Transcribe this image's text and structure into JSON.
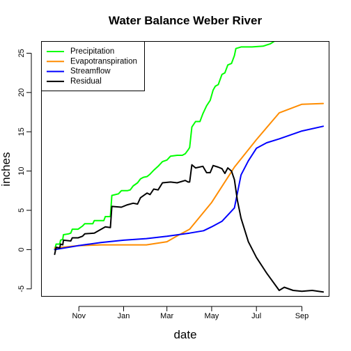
{
  "chart_data": {
    "type": "line",
    "title": "Water Balance Weber River",
    "xlabel": "date",
    "ylabel": "inches",
    "x_ticks": [
      "Nov",
      "Jan",
      "Mar",
      "May",
      "Jul",
      "Sep"
    ],
    "x_tick_dates": [
      "2016-11-01",
      "2017-01-01",
      "2017-03-01",
      "2017-05-01",
      "2017-07-01",
      "2017-09-01"
    ],
    "xlim": [
      "2016-09-11",
      "2017-10-08"
    ],
    "ylim": [
      -5.95,
      26.5
    ],
    "y_ticks": [
      -5,
      0,
      5,
      10,
      15,
      20,
      25
    ],
    "legend_position": "top-left",
    "legend": [
      "Precipitation",
      "Evapotranspiration",
      "Streamflow",
      "Residual"
    ],
    "colors": {
      "Precipitation": "#00ff00",
      "Evapotranspiration": "#ff8c00",
      "Streamflow": "#0000ff",
      "Residual": "#000000"
    },
    "series": [
      {
        "name": "Precipitation",
        "points": [
          [
            "2016-09-29",
            0.0
          ],
          [
            "2016-10-01",
            0.7
          ],
          [
            "2016-10-06",
            0.7
          ],
          [
            "2016-10-07",
            1.2
          ],
          [
            "2016-10-10",
            1.3
          ],
          [
            "2016-10-11",
            1.9
          ],
          [
            "2016-10-18",
            2.0
          ],
          [
            "2016-10-21",
            2.1
          ],
          [
            "2016-10-23",
            2.6
          ],
          [
            "2016-10-31",
            2.6
          ],
          [
            "2016-11-03",
            2.8
          ],
          [
            "2016-11-06",
            3.0
          ],
          [
            "2016-11-09",
            3.3
          ],
          [
            "2016-11-20",
            3.3
          ],
          [
            "2016-11-22",
            3.7
          ],
          [
            "2016-12-05",
            3.7
          ],
          [
            "2016-12-07",
            4.2
          ],
          [
            "2016-12-14",
            4.2
          ],
          [
            "2016-12-16",
            6.9
          ],
          [
            "2016-12-25",
            7.1
          ],
          [
            "2016-12-29",
            7.5
          ],
          [
            "2017-01-06",
            7.5
          ],
          [
            "2017-01-10",
            7.6
          ],
          [
            "2017-01-14",
            8.1
          ],
          [
            "2017-01-20",
            8.5
          ],
          [
            "2017-01-24",
            9.0
          ],
          [
            "2017-01-28",
            9.2
          ],
          [
            "2017-02-02",
            9.3
          ],
          [
            "2017-02-06",
            9.6
          ],
          [
            "2017-02-11",
            10.1
          ],
          [
            "2017-02-17",
            10.6
          ],
          [
            "2017-02-23",
            11.2
          ],
          [
            "2017-03-01",
            11.4
          ],
          [
            "2017-03-06",
            11.9
          ],
          [
            "2017-03-15",
            12.0
          ],
          [
            "2017-03-22",
            12.0
          ],
          [
            "2017-03-26",
            12.2
          ],
          [
            "2017-03-30",
            12.7
          ],
          [
            "2017-04-01",
            13.0
          ],
          [
            "2017-04-04",
            15.6
          ],
          [
            "2017-04-09",
            16.3
          ],
          [
            "2017-04-15",
            16.3
          ],
          [
            "2017-04-19",
            17.3
          ],
          [
            "2017-04-24",
            18.3
          ],
          [
            "2017-04-29",
            19.0
          ],
          [
            "2017-05-03",
            20.3
          ],
          [
            "2017-05-06",
            20.8
          ],
          [
            "2017-05-10",
            21.0
          ],
          [
            "2017-05-15",
            22.3
          ],
          [
            "2017-05-19",
            22.5
          ],
          [
            "2017-05-23",
            23.5
          ],
          [
            "2017-05-28",
            23.7
          ],
          [
            "2017-06-01",
            24.7
          ],
          [
            "2017-06-03",
            25.6
          ],
          [
            "2017-06-10",
            25.8
          ],
          [
            "2017-06-25",
            25.8
          ],
          [
            "2017-07-10",
            25.9
          ],
          [
            "2017-07-20",
            26.2
          ],
          [
            "2017-07-25",
            26.5
          ]
        ]
      },
      {
        "name": "Evapotranspiration",
        "points": [
          [
            "2016-09-29",
            0.2
          ],
          [
            "2016-10-31",
            0.5
          ],
          [
            "2016-12-01",
            0.6
          ],
          [
            "2017-01-01",
            0.6
          ],
          [
            "2017-02-01",
            0.6
          ],
          [
            "2017-03-01",
            1.0
          ],
          [
            "2017-03-16",
            1.8
          ],
          [
            "2017-04-01",
            2.6
          ],
          [
            "2017-05-01",
            6.0
          ],
          [
            "2017-06-01",
            10.5
          ],
          [
            "2017-07-01",
            14.0
          ],
          [
            "2017-08-01",
            17.4
          ],
          [
            "2017-09-01",
            18.5
          ],
          [
            "2017-09-30",
            18.6
          ]
        ]
      },
      {
        "name": "Streamflow",
        "points": [
          [
            "2016-09-29",
            0.0
          ],
          [
            "2016-10-31",
            0.5
          ],
          [
            "2016-12-01",
            0.9
          ],
          [
            "2017-01-01",
            1.2
          ],
          [
            "2017-02-01",
            1.4
          ],
          [
            "2017-03-01",
            1.7
          ],
          [
            "2017-04-01",
            2.1
          ],
          [
            "2017-04-20",
            2.4
          ],
          [
            "2017-05-01",
            2.9
          ],
          [
            "2017-05-15",
            3.6
          ],
          [
            "2017-06-01",
            5.3
          ],
          [
            "2017-06-10",
            9.5
          ],
          [
            "2017-06-20",
            11.3
          ],
          [
            "2017-07-01",
            12.9
          ],
          [
            "2017-07-15",
            13.6
          ],
          [
            "2017-08-01",
            14.1
          ],
          [
            "2017-09-01",
            15.1
          ],
          [
            "2017-09-30",
            15.7
          ]
        ]
      },
      {
        "name": "Residual",
        "points": [
          [
            "2016-09-29",
            -0.6
          ],
          [
            "2016-10-01",
            0.3
          ],
          [
            "2016-10-06",
            0.2
          ],
          [
            "2016-10-07",
            0.7
          ],
          [
            "2016-10-10",
            0.6
          ],
          [
            "2016-10-11",
            1.2
          ],
          [
            "2016-10-21",
            1.1
          ],
          [
            "2016-10-23",
            1.5
          ],
          [
            "2016-10-31",
            1.5
          ],
          [
            "2016-11-06",
            1.7
          ],
          [
            "2016-11-09",
            2.0
          ],
          [
            "2016-11-22",
            2.1
          ],
          [
            "2016-12-07",
            2.9
          ],
          [
            "2016-12-14",
            2.8
          ],
          [
            "2016-12-16",
            5.5
          ],
          [
            "2016-12-29",
            5.4
          ],
          [
            "2017-01-06",
            5.7
          ],
          [
            "2017-01-14",
            5.9
          ],
          [
            "2017-01-20",
            5.8
          ],
          [
            "2017-01-24",
            6.6
          ],
          [
            "2017-02-02",
            7.2
          ],
          [
            "2017-02-06",
            7.0
          ],
          [
            "2017-02-11",
            7.7
          ],
          [
            "2017-02-17",
            7.6
          ],
          [
            "2017-02-23",
            8.5
          ],
          [
            "2017-03-06",
            8.6
          ],
          [
            "2017-03-15",
            8.5
          ],
          [
            "2017-03-26",
            8.8
          ],
          [
            "2017-03-30",
            8.6
          ],
          [
            "2017-04-01",
            8.6
          ],
          [
            "2017-04-04",
            10.8
          ],
          [
            "2017-04-09",
            10.4
          ],
          [
            "2017-04-19",
            10.6
          ],
          [
            "2017-04-24",
            9.8
          ],
          [
            "2017-04-29",
            9.8
          ],
          [
            "2017-05-03",
            10.7
          ],
          [
            "2017-05-10",
            10.5
          ],
          [
            "2017-05-15",
            10.3
          ],
          [
            "2017-05-19",
            9.7
          ],
          [
            "2017-05-23",
            10.4
          ],
          [
            "2017-05-28",
            10.0
          ],
          [
            "2017-06-01",
            8.9
          ],
          [
            "2017-06-05",
            6.3
          ],
          [
            "2017-06-10",
            4.0
          ],
          [
            "2017-06-20",
            1.0
          ],
          [
            "2017-07-01",
            -1.0
          ],
          [
            "2017-07-15",
            -3.0
          ],
          [
            "2017-08-01",
            -5.2
          ],
          [
            "2017-08-08",
            -4.8
          ],
          [
            "2017-08-20",
            -5.2
          ],
          [
            "2017-09-01",
            -5.3
          ],
          [
            "2017-09-15",
            -5.2
          ],
          [
            "2017-09-30",
            -5.4
          ]
        ]
      }
    ]
  }
}
